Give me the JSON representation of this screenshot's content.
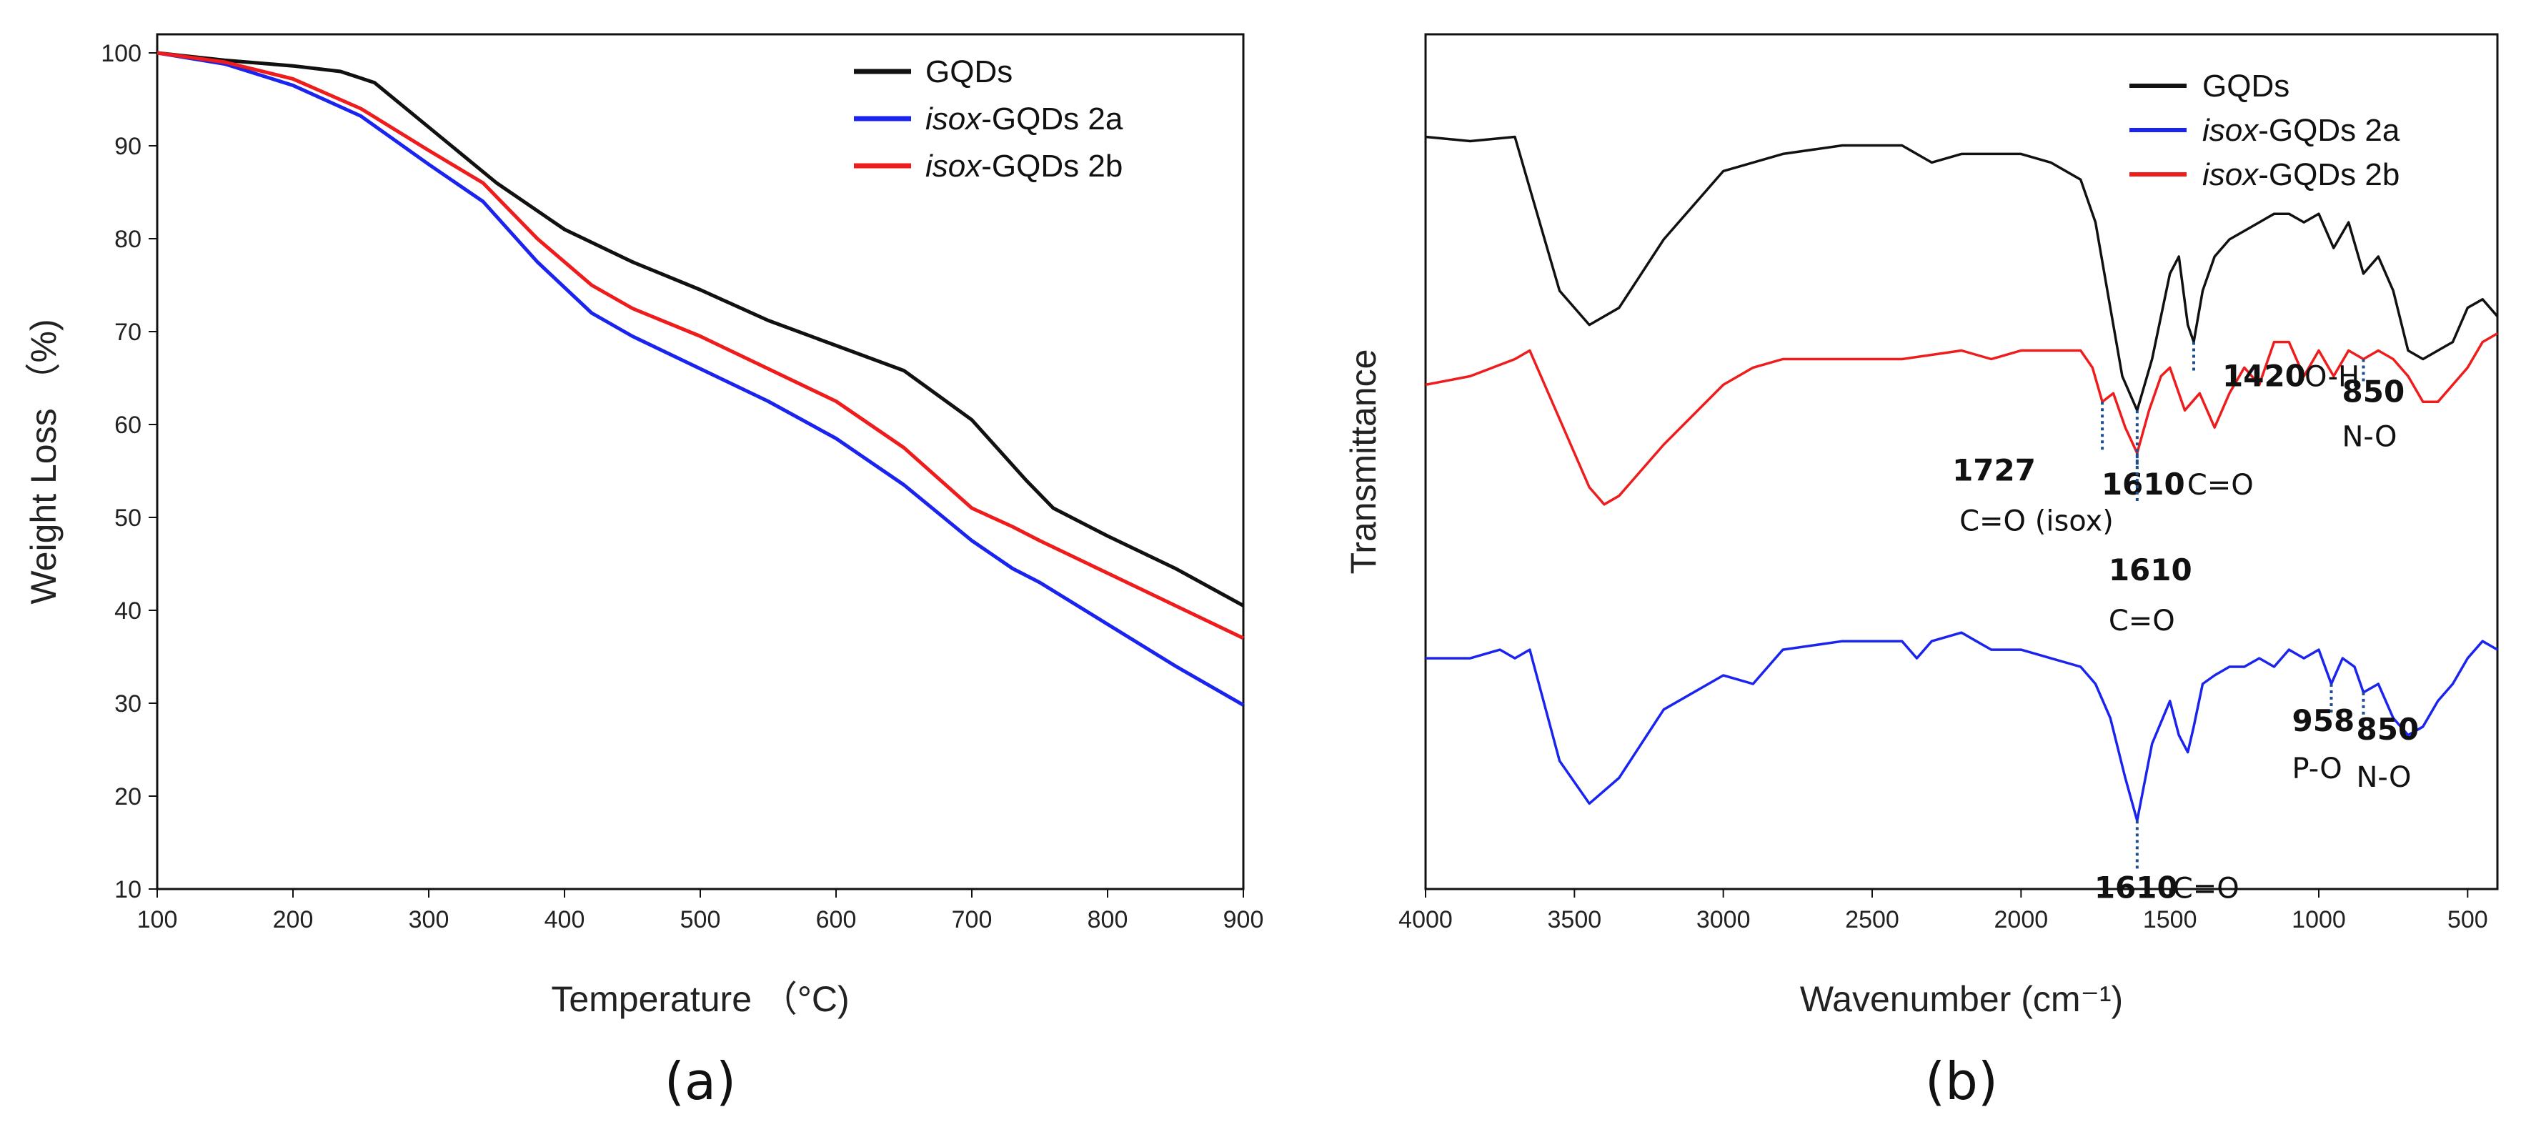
{
  "chart_data": [
    {
      "panel": "(a)",
      "type": "line",
      "title": "",
      "xlabel": "Temperature （°C)",
      "ylabel": "Weight Loss （%)",
      "xlim": [
        100,
        900
      ],
      "ylim": [
        10,
        102
      ],
      "xticks": [
        100,
        200,
        300,
        400,
        500,
        600,
        700,
        800,
        900
      ],
      "yticks": [
        10,
        20,
        30,
        40,
        50,
        60,
        70,
        80,
        90,
        100
      ],
      "legend_position": "top-right",
      "series": [
        {
          "name": "GQDs",
          "name_main": "GQDs",
          "name_prefix": "",
          "color": "#111111",
          "x": [
            100,
            150,
            200,
            235,
            260,
            300,
            350,
            400,
            450,
            500,
            550,
            600,
            650,
            700,
            740,
            760,
            800,
            850,
            900
          ],
          "y": [
            100,
            99.2,
            98.6,
            98.0,
            96.8,
            92.0,
            86.0,
            81.0,
            77.5,
            74.5,
            71.2,
            68.5,
            65.8,
            60.5,
            54.0,
            51.0,
            48.0,
            44.5,
            40.5
          ]
        },
        {
          "name": "isox-GQDs 2a",
          "name_main": "-GQDs 2a",
          "name_prefix": "isox",
          "color": "#1a24ee",
          "x": [
            100,
            150,
            200,
            250,
            300,
            340,
            380,
            420,
            450,
            500,
            550,
            600,
            650,
            700,
            730,
            750,
            800,
            850,
            900
          ],
          "y": [
            100,
            98.8,
            96.5,
            93.2,
            88.0,
            84.0,
            77.5,
            72.0,
            69.5,
            66.0,
            62.5,
            58.5,
            53.5,
            47.5,
            44.5,
            43.0,
            38.5,
            34.0,
            29.8
          ]
        },
        {
          "name": "isox-GQDs 2b",
          "name_main": "-GQDs 2b",
          "name_prefix": "isox",
          "color": "#ee1c1c",
          "x": [
            100,
            150,
            200,
            250,
            300,
            340,
            380,
            420,
            450,
            500,
            550,
            600,
            650,
            700,
            730,
            750,
            800,
            850,
            900
          ],
          "y": [
            100,
            99.0,
            97.2,
            94.0,
            89.5,
            86.0,
            80.0,
            75.0,
            72.5,
            69.5,
            66.0,
            62.5,
            57.5,
            51.0,
            49.0,
            47.5,
            44.0,
            40.5,
            37.0
          ]
        }
      ],
      "panel_label": "(a)"
    },
    {
      "panel": "(b)",
      "type": "line",
      "title": "",
      "xlabel": "Wavenumber (cm⁻¹)",
      "ylabel": "Transmittance",
      "xlim": [
        4000,
        400
      ],
      "x_direction": "descending",
      "xticks": [
        4000,
        3500,
        3000,
        2500,
        2000,
        1500,
        1000,
        500
      ],
      "yticks": [],
      "y_units": "relative transmittance (offset traces, no tick labels)",
      "ylim": [
        0,
        100
      ],
      "legend_position": "top-right",
      "series": [
        {
          "name": "GQDs",
          "name_main": "GQDs",
          "name_prefix": "",
          "color": "#111111",
          "x": [
            4000,
            3850,
            3700,
            3650,
            3550,
            3450,
            3350,
            3200,
            3000,
            2800,
            2600,
            2400,
            2300,
            2200,
            2100,
            2000,
            1900,
            1800,
            1750,
            1700,
            1660,
            1610,
            1560,
            1500,
            1470,
            1440,
            1420,
            1390,
            1350,
            1300,
            1250,
            1200,
            1150,
            1100,
            1050,
            1000,
            950,
            900,
            850,
            800,
            750,
            700,
            650,
            600,
            550,
            500,
            450,
            400
          ],
          "y": [
            88,
            87.5,
            88,
            82,
            70,
            66,
            68,
            76,
            84,
            86,
            87,
            87,
            85,
            86,
            86,
            86,
            85,
            83,
            78,
            68,
            60,
            56,
            62,
            72,
            74,
            66,
            64,
            70,
            74,
            76,
            77,
            78,
            79,
            79,
            78,
            79,
            75,
            78,
            72,
            74,
            70,
            63,
            62,
            63,
            64,
            68,
            69,
            67
          ]
        },
        {
          "name": "isox-GQDs 2a",
          "name_main": "-GQDs 2a",
          "name_prefix": "isox",
          "color": "#1a24ee",
          "x": [
            4000,
            3850,
            3750,
            3700,
            3650,
            3550,
            3450,
            3350,
            3200,
            3000,
            2900,
            2800,
            2600,
            2400,
            2350,
            2300,
            2200,
            2150,
            2100,
            2000,
            1900,
            1800,
            1750,
            1700,
            1650,
            1610,
            1560,
            1500,
            1470,
            1440,
            1420,
            1390,
            1350,
            1300,
            1250,
            1200,
            1150,
            1100,
            1050,
            1000,
            958,
            920,
            880,
            850,
            800,
            750,
            700,
            650,
            600,
            550,
            500,
            450,
            400
          ],
          "y": [
            27,
            27,
            28,
            27,
            28,
            15,
            10,
            13,
            21,
            25,
            24,
            28,
            29,
            29,
            27,
            29,
            30,
            29,
            28,
            28,
            27,
            26,
            24,
            20,
            13,
            8,
            17,
            22,
            18,
            16,
            19,
            24,
            25,
            26,
            26,
            27,
            26,
            28,
            27,
            28,
            24,
            27,
            26,
            23,
            24,
            20,
            18,
            19,
            22,
            24,
            27,
            29,
            28
          ]
        },
        {
          "name": "isox-GQDs 2b",
          "name_main": "-GQDs 2b",
          "name_prefix": "isox",
          "color": "#ee1c1c",
          "x": [
            4000,
            3850,
            3700,
            3650,
            3550,
            3450,
            3400,
            3350,
            3200,
            3000,
            2900,
            2800,
            2600,
            2400,
            2200,
            2100,
            2000,
            1900,
            1800,
            1760,
            1727,
            1690,
            1650,
            1610,
            1570,
            1530,
            1500,
            1450,
            1400,
            1350,
            1300,
            1250,
            1200,
            1150,
            1100,
            1050,
            1000,
            950,
            900,
            850,
            800,
            750,
            700,
            650,
            600,
            550,
            500,
            450,
            400
          ],
          "y": [
            59,
            60,
            62,
            63,
            55,
            47,
            45,
            46,
            52,
            59,
            61,
            62,
            62,
            62,
            63,
            62,
            63,
            63,
            63,
            61,
            57,
            58,
            54,
            51,
            56,
            60,
            61,
            56,
            58,
            54,
            58,
            61,
            59,
            64,
            64,
            60,
            63,
            60,
            63,
            62,
            63,
            62,
            60,
            57,
            57,
            59,
            61,
            64,
            65
          ]
        }
      ],
      "annotations": [
        {
          "num": "1420",
          "label": "O-H",
          "wavenumber": 1420,
          "trace": "GQDs"
        },
        {
          "num": "1610",
          "label": "C=O",
          "wavenumber": 1610,
          "trace": "GQDs"
        },
        {
          "num": "1727",
          "label": "C=O (isox)",
          "wavenumber": 1727,
          "trace": "isox-GQDs 2b"
        },
        {
          "num": "1610",
          "label": "C=O",
          "wavenumber": 1610,
          "trace": "isox-GQDs 2b"
        },
        {
          "num": "850",
          "label": "N-O",
          "wavenumber": 850,
          "trace": "isox-GQDs 2b"
        },
        {
          "num": "958",
          "label": "P-O",
          "wavenumber": 958,
          "trace": "isox-GQDs 2a"
        },
        {
          "num": "850",
          "label": "N-O",
          "wavenumber": 850,
          "trace": "isox-GQDs 2a"
        },
        {
          "num": "1610",
          "label": "C=O",
          "wavenumber": 1610,
          "trace": "isox-GQDs 2a"
        }
      ],
      "panel_label": "(b)"
    }
  ]
}
